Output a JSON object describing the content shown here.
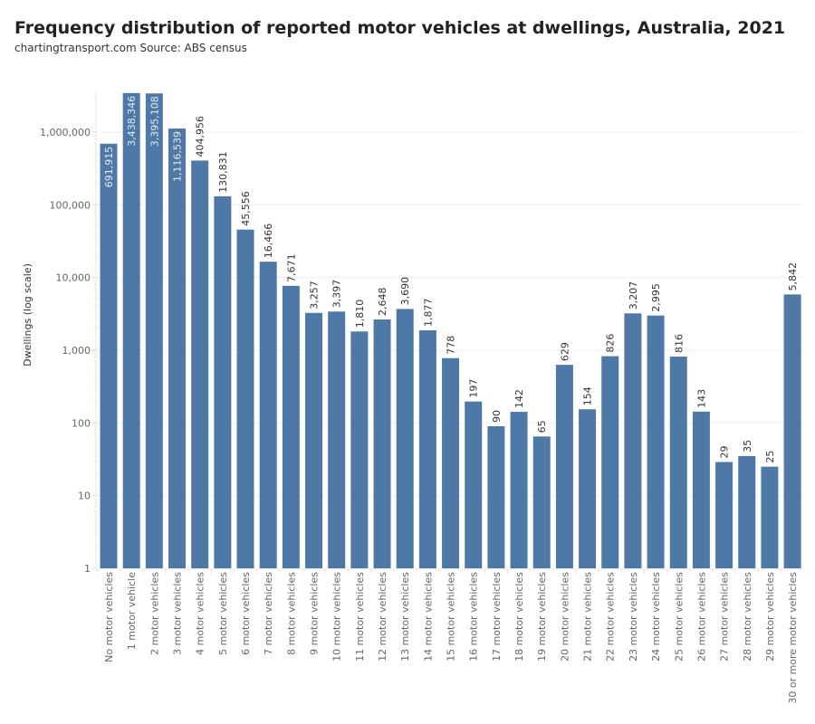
{
  "chart_data": {
    "type": "bar",
    "title": "Frequency distribution of reported motor vehicles at dwellings, Australia, 2021",
    "subtitle": "chartingtransport.com  Source: ABS census",
    "xlabel": "",
    "ylabel": "Dwellings (log scale)",
    "yscale": "log",
    "ylim": [
      1,
      3700000
    ],
    "yticks": [
      1,
      10,
      100,
      1000,
      10000,
      100000,
      1000000
    ],
    "ytick_labels": [
      "1",
      "10",
      "100",
      "1,000",
      "10,000",
      "100,000",
      "1,000,000"
    ],
    "grid": true,
    "bar_color": "#4e79a7",
    "categories": [
      "No motor vehicles",
      "1 motor vehicle",
      "2 motor vehicles",
      "3 motor vehicles",
      "4 motor vehicles",
      "5 motor vehicles",
      "6 motor vehicles",
      "7 motor vehicles",
      "8 motor vehicles",
      "9 motor vehicles",
      "10 motor vehicles",
      "11 motor vehicles",
      "12 motor vehicles",
      "13 motor vehicles",
      "14 motor vehicles",
      "15 motor vehicles",
      "16 motor vehicles",
      "17 motor vehicles",
      "18 motor vehicles",
      "19 motor vehicles",
      "20 motor vehicles",
      "21 motor vehicles",
      "22 motor vehicles",
      "23 motor vehicles",
      "24 motor vehicles",
      "25 motor vehicles",
      "26 motor vehicles",
      "27 motor vehicles",
      "28 motor vehicles",
      "29 motor vehicles",
      "30 or more motor vehicles"
    ],
    "values": [
      691915,
      3438346,
      3395108,
      1116539,
      404956,
      130831,
      45556,
      16466,
      7671,
      3257,
      3397,
      1810,
      2648,
      3690,
      1877,
      778,
      197,
      90,
      142,
      65,
      629,
      154,
      826,
      3207,
      2995,
      816,
      143,
      29,
      35,
      25,
      5842
    ],
    "value_labels": [
      "691,915",
      "3,438,346",
      "3,395,108",
      "1,116,539",
      "404,956",
      "130,831",
      "45,556",
      "16,466",
      "7,671",
      "3,257",
      "3,397",
      "1,810",
      "2,648",
      "3,690",
      "1,877",
      "778",
      "197",
      "90",
      "142",
      "65",
      "629",
      "154",
      "826",
      "3,207",
      "2,995",
      "816",
      "143",
      "29",
      "35",
      "25",
      "5,842"
    ]
  }
}
